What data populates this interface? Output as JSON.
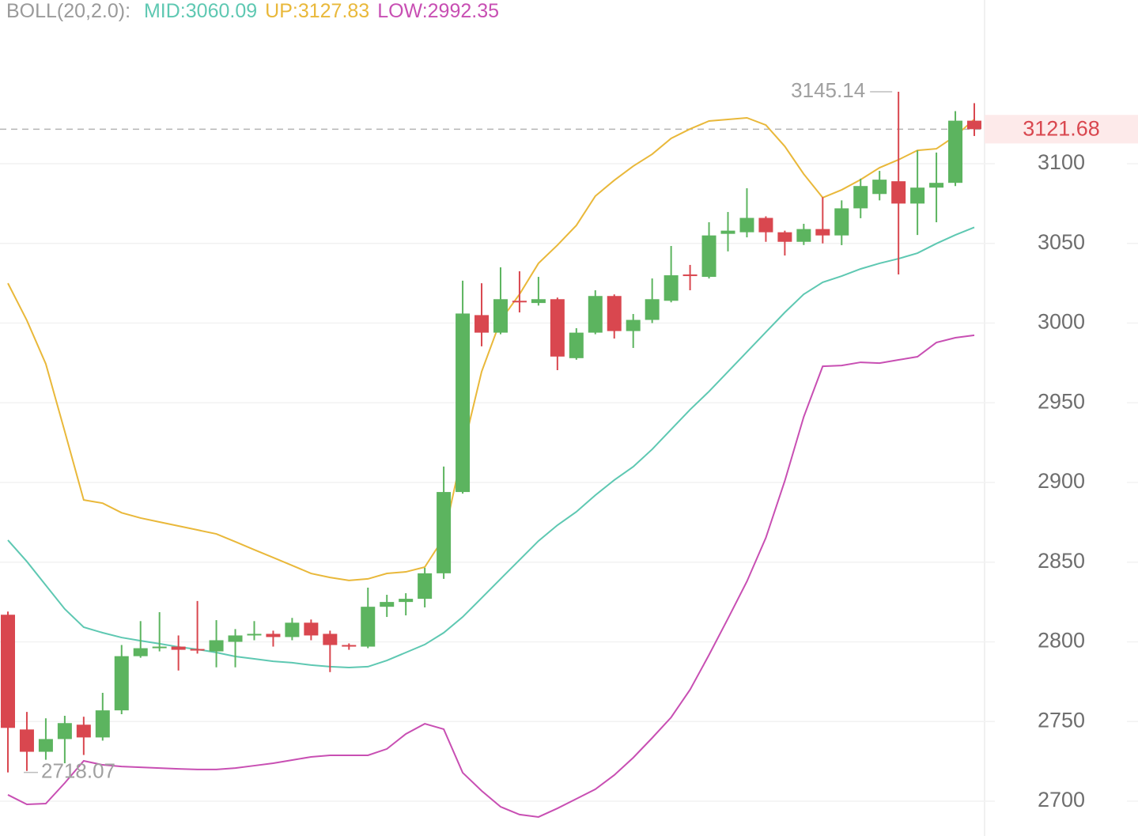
{
  "chart_data": {
    "type": "candlestick",
    "indicator": "BOLL(20,2.0):",
    "up_color": "#5cb45f",
    "down_color": "#d9474f",
    "ylim": [
      2678.16,
      3202.73
    ],
    "yticks": [
      2700,
      2750,
      2800,
      2850,
      2900,
      2950,
      3000,
      3050,
      3100
    ],
    "grid": true,
    "open": [
      2817,
      2745,
      2731,
      2739,
      2748,
      2740,
      2757,
      2791,
      2796,
      2797,
      2795.5,
      2794,
      2800,
      2804,
      2805,
      2803,
      2812,
      2805,
      2798,
      2797,
      2822,
      2825,
      2827,
      2843,
      2894,
      3005,
      2994,
      3014,
      3012.6,
      3015,
      2978,
      2994,
      3017,
      2995,
      3002,
      3014,
      3030.5,
      3029,
      3056,
      3057,
      3066,
      3057,
      3051,
      3059,
      3055,
      3072,
      3081,
      3089,
      3075,
      3085,
      3088,
      3127
    ],
    "high": [
      2819,
      2756,
      2752,
      2753.6,
      2753,
      2768,
      2798,
      2813,
      2818.6,
      2804,
      2825.6,
      2813.6,
      2808,
      2813,
      2807,
      2815,
      2814,
      2807,
      2799,
      2834,
      2829.5,
      2830.5,
      2846.4,
      2910,
      3026.6,
      3025,
      3035,
      3032.5,
      3029,
      3016,
      2996.8,
      3020.6,
      3018,
      3005.7,
      3028,
      3048.4,
      3036.5,
      3063.3,
      3069.7,
      3084.6,
      3067,
      3058,
      3062.3,
      3079,
      3077,
      3090.6,
      3095.5,
      3145.14,
      3108.4,
      3107,
      3133,
      3138
    ],
    "low": [
      2718.07,
      2719,
      2726,
      2723.8,
      2729,
      2738,
      2754.6,
      2790,
      2794,
      2782,
      2792.6,
      2784,
      2784,
      2801,
      2797,
      2801,
      2801,
      2781,
      2795,
      2796,
      2815.6,
      2816.6,
      2821.6,
      2839.5,
      2893,
      2985.4,
      2993,
      3006.7,
      3011,
      2970.5,
      2977,
      2993,
      2990.3,
      2984.4,
      3000,
      3013,
      3020.6,
      3028,
      3045,
      3053.8,
      3051,
      3042.4,
      3049,
      3050,
      3048.9,
      3065.8,
      3077,
      3030.5,
      3055.3,
      3063.3,
      3086,
      3117.4
    ],
    "close": [
      2746,
      2731,
      2739,
      2749,
      2740,
      2757,
      2791,
      2796,
      2797,
      2795,
      2795,
      2801,
      2804,
      2805,
      2803,
      2812,
      2804,
      2798,
      2797,
      2822,
      2825,
      2827,
      2843,
      2894,
      3006,
      2994,
      3015,
      3013,
      3015,
      2979,
      2994,
      3017,
      2995,
      3002,
      3015,
      3030,
      3029.5,
      3055,
      3058,
      3066,
      3057,
      3051,
      3059,
      3055,
      3072,
      3086,
      3090,
      3075,
      3085,
      3088,
      3127,
      3121.68
    ],
    "series": [
      {
        "name": "MID:",
        "color": "#5ec8b2",
        "values": [
          2863.8,
          2850.4,
          2835.5,
          2820.6,
          2809.2,
          2805.7,
          2802.7,
          2800.7,
          2798.8,
          2796.8,
          2795.3,
          2793.3,
          2790.8,
          2789.3,
          2787.8,
          2786.9,
          2785.4,
          2784.4,
          2783.9,
          2784.4,
          2788.3,
          2793.3,
          2798.3,
          2805.7,
          2815.6,
          2827.5,
          2839.5,
          2851.4,
          2863.3,
          2873.2,
          2881.6,
          2892,
          2901.5,
          2909.9,
          2920.8,
          2933.3,
          2945.7,
          2957.1,
          2969.5,
          2981.9,
          2994.3,
          3006.7,
          3018.1,
          3025.6,
          3029.5,
          3034,
          3037.5,
          3040.4,
          3043.9,
          3049.9,
          3055.3,
          3060.09
        ]
      },
      {
        "name": "UP:",
        "color": "#e9b83a",
        "values": [
          3025,
          3001.7,
          2974.4,
          2932,
          2889,
          2887,
          2881,
          2877.7,
          2875.2,
          2872.7,
          2870.2,
          2867.7,
          2862.8,
          2857.8,
          2852.9,
          2847.9,
          2842.9,
          2840.4,
          2838.5,
          2839.5,
          2842.9,
          2843.9,
          2846.9,
          2865.3,
          2919.9,
          2969.5,
          3001.7,
          3018.1,
          3037.5,
          3048.9,
          3061.3,
          3079.7,
          3089.6,
          3098.5,
          3106,
          3115.9,
          3121.8,
          3126.8,
          3127.8,
          3128.8,
          3124.3,
          3110.9,
          3093.5,
          3078.7,
          3083.6,
          3090,
          3097.5,
          3102.5,
          3108.4,
          3109.4,
          3117.4,
          3127.83
        ]
      },
      {
        "name": "LOW:",
        "color": "#c84fb3",
        "values": [
          2704,
          2698,
          2698.5,
          2711.4,
          2725.3,
          2722.8,
          2721.8,
          2721.3,
          2720.8,
          2720.3,
          2719.9,
          2719.9,
          2720.8,
          2722.3,
          2723.8,
          2725.8,
          2727.8,
          2728.8,
          2728.8,
          2728.8,
          2732.8,
          2742.2,
          2748.6,
          2745.2,
          2717.9,
          2706.5,
          2696.5,
          2691.6,
          2690.1,
          2695.5,
          2701.5,
          2707.5,
          2716.4,
          2727.3,
          2739.7,
          2752.6,
          2770,
          2791.8,
          2814.6,
          2837.9,
          2865.3,
          2901,
          2941.2,
          2972.9,
          2973.4,
          2975.4,
          2974.9,
          2976.9,
          2978.9,
          2987.8,
          2990.8,
          2992.35
        ]
      }
    ]
  }
}
